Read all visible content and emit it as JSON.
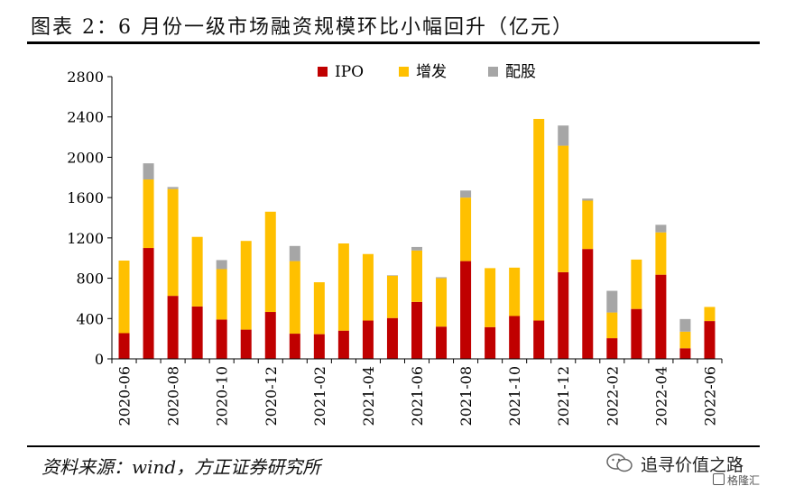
{
  "header": {
    "title": "图表 2：6 月份一级市场融资规模环比小幅回升（亿元）"
  },
  "footer": {
    "source": "资料来源：wind，方正证券研究所",
    "watermark": {
      "text": "追寻价值之路",
      "sub_text": "格隆汇",
      "icon": "wechat-bubble-icon"
    }
  },
  "chart_data": {
    "type": "bar",
    "stacked": true,
    "categories": [
      "2020-06",
      "2020-07",
      "2020-08",
      "2020-09",
      "2020-10",
      "2020-11",
      "2020-12",
      "2021-01",
      "2021-02",
      "2021-03",
      "2021-04",
      "2021-05",
      "2021-06",
      "2021-07",
      "2021-08",
      "2021-09",
      "2021-10",
      "2021-11",
      "2021-12",
      "2022-01",
      "2022-02",
      "2022-03",
      "2022-04",
      "2022-05",
      "2022-06"
    ],
    "tick_labels": [
      "2020-06",
      "2020-08",
      "2020-10",
      "2020-12",
      "2021-02",
      "2021-04",
      "2021-06",
      "2021-08",
      "2021-10",
      "2021-12",
      "2022-02",
      "2022-04",
      "2022-06"
    ],
    "series": [
      {
        "name": "IPO",
        "color": "#c00000",
        "values": [
          255,
          1100,
          625,
          520,
          390,
          290,
          465,
          250,
          245,
          280,
          380,
          405,
          565,
          320,
          970,
          315,
          425,
          380,
          860,
          1090,
          205,
          495,
          835,
          105,
          375
        ]
      },
      {
        "name": "增发",
        "color": "#ffc000",
        "values": [
          720,
          680,
          1060,
          690,
          500,
          880,
          995,
          720,
          515,
          865,
          660,
          420,
          510,
          480,
          630,
          585,
          480,
          2000,
          1255,
          480,
          255,
          490,
          420,
          165,
          140
        ]
      },
      {
        "name": "配股",
        "color": "#a6a6a6",
        "values": [
          0,
          160,
          20,
          0,
          90,
          0,
          0,
          150,
          0,
          0,
          0,
          5,
          35,
          10,
          70,
          0,
          0,
          0,
          200,
          20,
          215,
          0,
          75,
          125,
          0
        ]
      }
    ],
    "ylim": [
      0,
      2800
    ],
    "yticks": [
      0,
      400,
      800,
      1200,
      1600,
      2000,
      2400,
      2800
    ],
    "legend_position": "top-center",
    "grid": false
  }
}
